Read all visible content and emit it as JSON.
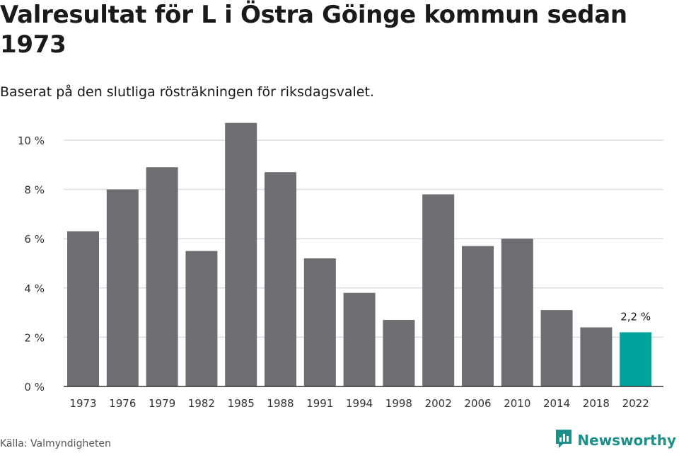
{
  "header": {
    "title": "Valresultat för L i Östra Göinge kommun sedan 1973",
    "subtitle": "Baserat på den slutliga rösträkningen för riksdagsvalet."
  },
  "footer": {
    "source": "Källa: Valmyndigheten",
    "brand": "Newsworthy"
  },
  "colors": {
    "bar": "#6e6d72",
    "highlight": "#00a39b",
    "grid": "#dddddd",
    "brand": "#1f8f8b"
  },
  "chart_data": {
    "type": "bar",
    "categories": [
      "1973",
      "1976",
      "1979",
      "1982",
      "1985",
      "1988",
      "1991",
      "1994",
      "1998",
      "2002",
      "2006",
      "2010",
      "2014",
      "2018",
      "2022"
    ],
    "values": [
      6.3,
      8.0,
      8.9,
      5.5,
      10.7,
      8.7,
      5.2,
      3.8,
      2.7,
      7.8,
      5.7,
      6.0,
      3.1,
      2.4,
      2.2
    ],
    "ylim": [
      0,
      11
    ],
    "yticks": [
      0,
      2,
      4,
      6,
      8,
      10
    ],
    "tick_suffix": " %",
    "highlight_index": 14,
    "highlight_label": "2,2 %",
    "grid": true
  }
}
